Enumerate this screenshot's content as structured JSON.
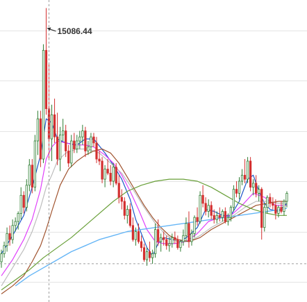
{
  "chart_data": {
    "type": "candlestick",
    "title": "",
    "xlabel": "",
    "ylabel": "",
    "ylim": [
      1500,
      16500
    ],
    "grid": true,
    "grid_lines_y": [
      15000,
      12500,
      10000,
      7500,
      5000,
      2500
    ],
    "crosshair": {
      "index": 17,
      "y": 3400
    },
    "annotations": [
      {
        "text": "15086.44",
        "index": 16,
        "y": 15086.44
      }
    ],
    "colors": {
      "up": "#2e7d32",
      "down": "#d32f2f",
      "grid": "#e4e4e4",
      "crosshair": "#9e9e9e",
      "annotation_arrow": "#333333"
    },
    "candles": [
      [
        3500,
        4100,
        3200,
        3900
      ],
      [
        3900,
        4500,
        3700,
        4300
      ],
      [
        4300,
        5200,
        4000,
        4900
      ],
      [
        4900,
        5300,
        4300,
        4600
      ],
      [
        4600,
        5600,
        4400,
        5300
      ],
      [
        5300,
        5700,
        5000,
        5500
      ],
      [
        5500,
        6000,
        5100,
        5900
      ],
      [
        5900,
        7200,
        5600,
        6800
      ],
      [
        6800,
        7000,
        5900,
        6200
      ],
      [
        6200,
        7600,
        6000,
        7300
      ],
      [
        7300,
        8600,
        7000,
        8300
      ],
      [
        8300,
        8600,
        6900,
        7200
      ],
      [
        7200,
        9800,
        7000,
        9500
      ],
      [
        9500,
        11000,
        8800,
        10600
      ],
      [
        10600,
        11000,
        8200,
        8600
      ],
      [
        8600,
        14300,
        8400,
        14000
      ],
      [
        14000,
        16100,
        10800,
        11100
      ],
      [
        11100,
        13400,
        8600,
        9600
      ],
      [
        9600,
        11300,
        8500,
        10800
      ],
      [
        10800,
        11600,
        9400,
        9700
      ],
      [
        9700,
        10900,
        8300,
        8600
      ],
      [
        8600,
        10200,
        8000,
        9800
      ],
      [
        9800,
        10600,
        9500,
        10000
      ],
      [
        10000,
        10300,
        8700,
        9000
      ],
      [
        9000,
        9300,
        8200,
        8400
      ],
      [
        8400,
        9800,
        8200,
        9500
      ],
      [
        9500,
        9900,
        8900,
        9100
      ],
      [
        9100,
        9800,
        8900,
        9500
      ],
      [
        9500,
        10000,
        9100,
        9700
      ],
      [
        9700,
        10300,
        9300,
        10000
      ],
      [
        10000,
        10200,
        8700,
        9000
      ],
      [
        9000,
        9500,
        8800,
        9200
      ],
      [
        9200,
        9900,
        8900,
        9700
      ],
      [
        9700,
        9900,
        9200,
        9400
      ],
      [
        9400,
        9700,
        8400,
        8600
      ],
      [
        8600,
        9000,
        8300,
        8500
      ],
      [
        8500,
        8700,
        7400,
        7600
      ],
      [
        7600,
        8300,
        7200,
        8100
      ],
      [
        8100,
        8600,
        7800,
        7900
      ],
      [
        7900,
        8300,
        7300,
        7500
      ],
      [
        7500,
        8400,
        7200,
        8200
      ],
      [
        8200,
        8400,
        7300,
        7400
      ],
      [
        7400,
        7800,
        6400,
        6700
      ],
      [
        6700,
        7100,
        6100,
        6500
      ],
      [
        6500,
        6700,
        5600,
        5800
      ],
      [
        5800,
        6300,
        5400,
        6100
      ],
      [
        6100,
        6400,
        5200,
        5300
      ],
      [
        5300,
        5700,
        4500,
        4600
      ],
      [
        4600,
        5200,
        4300,
        5000
      ],
      [
        5000,
        5400,
        4400,
        4500
      ],
      [
        4500,
        4800,
        4000,
        4200
      ],
      [
        4200,
        4400,
        3500,
        3600
      ],
      [
        3600,
        4200,
        3300,
        4000
      ],
      [
        4000,
        4500,
        3500,
        3700
      ],
      [
        3700,
        4100,
        3400,
        3900
      ],
      [
        3900,
        5400,
        3700,
        5100
      ],
      [
        5100,
        5600,
        4300,
        4500
      ],
      [
        4500,
        4900,
        4000,
        4700
      ],
      [
        4700,
        5000,
        4300,
        4600
      ],
      [
        4600,
        4800,
        4100,
        4300
      ],
      [
        4300,
        4700,
        4000,
        4400
      ],
      [
        4400,
        4900,
        4200,
        4700
      ],
      [
        4700,
        5000,
        4400,
        4600
      ],
      [
        4600,
        4800,
        4100,
        4200
      ],
      [
        4200,
        4600,
        4000,
        4500
      ],
      [
        4500,
        5100,
        4300,
        4800
      ],
      [
        4800,
        5700,
        4500,
        5400
      ],
      [
        5400,
        6000,
        4200,
        4500
      ],
      [
        4500,
        5100,
        4300,
        4900
      ],
      [
        4900,
        5800,
        4700,
        5700
      ],
      [
        5700,
        6200,
        5300,
        5500
      ],
      [
        5500,
        7000,
        5400,
        6800
      ],
      [
        6800,
        7300,
        6200,
        6400
      ],
      [
        6400,
        6700,
        5800,
        6000
      ],
      [
        6000,
        6600,
        5700,
        6300
      ],
      [
        6300,
        6500,
        5600,
        5800
      ],
      [
        5800,
        6100,
        5400,
        5600
      ],
      [
        5600,
        6000,
        5400,
        5800
      ],
      [
        5800,
        6200,
        5500,
        5700
      ],
      [
        5700,
        6100,
        5500,
        6000
      ],
      [
        6000,
        6200,
        5400,
        5500
      ],
      [
        5500,
        5900,
        5300,
        5700
      ],
      [
        5700,
        6300,
        5500,
        6200
      ],
      [
        6200,
        7300,
        6000,
        7100
      ],
      [
        7100,
        7500,
        6700,
        6900
      ],
      [
        6900,
        7700,
        6600,
        7500
      ],
      [
        7500,
        8100,
        7300,
        7800
      ],
      [
        7800,
        8600,
        7400,
        7600
      ],
      [
        7600,
        8700,
        7400,
        8500
      ],
      [
        8500,
        8700,
        7000,
        7200
      ],
      [
        7200,
        7600,
        6800,
        7400
      ],
      [
        7400,
        7800,
        6700,
        6900
      ],
      [
        6900,
        7300,
        6500,
        7100
      ],
      [
        7100,
        7200,
        4600,
        5200
      ],
      [
        5200,
        6400,
        5000,
        6200
      ],
      [
        6200,
        6800,
        5900,
        6700
      ],
      [
        6700,
        6900,
        6200,
        6400
      ],
      [
        6400,
        6700,
        6100,
        6300
      ],
      [
        6300,
        6600,
        5600,
        5900
      ],
      [
        5900,
        6300,
        5700,
        6200
      ],
      [
        6200,
        6500,
        5900,
        6000
      ],
      [
        6000,
        6600,
        5800,
        6500
      ],
      [
        6500,
        7000,
        6200,
        6900
      ]
    ],
    "moving_averages": [
      {
        "color": "#1e57c8",
        "width": 1.2,
        "points": [
          [
            0,
            3900
          ],
          [
            4,
            4800
          ],
          [
            8,
            5800
          ],
          [
            11,
            7200
          ],
          [
            14,
            8800
          ],
          [
            16,
            10600
          ],
          [
            18,
            10400
          ],
          [
            20,
            9600
          ],
          [
            23,
            9400
          ],
          [
            27,
            9300
          ],
          [
            30,
            9600
          ],
          [
            33,
            9600
          ],
          [
            37,
            8900
          ],
          [
            40,
            8300
          ],
          [
            43,
            7600
          ],
          [
            46,
            6600
          ],
          [
            48,
            5600
          ],
          [
            50,
            4900
          ],
          [
            52,
            4200
          ],
          [
            54,
            3800
          ],
          [
            56,
            4400
          ],
          [
            58,
            4700
          ],
          [
            61,
            4600
          ],
          [
            64,
            4500
          ],
          [
            67,
            4800
          ],
          [
            70,
            5200
          ],
          [
            73,
            6100
          ],
          [
            76,
            6000
          ],
          [
            79,
            5800
          ],
          [
            82,
            5800
          ],
          [
            85,
            6500
          ],
          [
            88,
            7600
          ],
          [
            90,
            7800
          ],
          [
            92,
            7000
          ],
          [
            94,
            6400
          ],
          [
            96,
            6100
          ],
          [
            99,
            6000
          ],
          [
            102,
            6400
          ]
        ]
      },
      {
        "color": "#e040fb",
        "width": 1.2,
        "points": [
          [
            0,
            2800
          ],
          [
            4,
            3600
          ],
          [
            8,
            4600
          ],
          [
            11,
            5600
          ],
          [
            14,
            7100
          ],
          [
            16,
            8600
          ],
          [
            18,
            9200
          ],
          [
            20,
            9500
          ],
          [
            23,
            9400
          ],
          [
            26,
            9300
          ],
          [
            30,
            9300
          ],
          [
            33,
            9200
          ],
          [
            37,
            8800
          ],
          [
            40,
            8400
          ],
          [
            43,
            7800
          ],
          [
            46,
            7000
          ],
          [
            49,
            6100
          ],
          [
            52,
            5100
          ],
          [
            55,
            4500
          ],
          [
            58,
            4400
          ],
          [
            62,
            4400
          ],
          [
            66,
            4500
          ],
          [
            70,
            4900
          ],
          [
            74,
            5500
          ],
          [
            78,
            5700
          ],
          [
            82,
            5800
          ],
          [
            86,
            6300
          ],
          [
            90,
            6900
          ],
          [
            94,
            6700
          ],
          [
            98,
            6300
          ],
          [
            102,
            6300
          ]
        ]
      },
      {
        "color": "#bdbdbd",
        "width": 1.2,
        "points": [
          [
            0,
            2300
          ],
          [
            4,
            3200
          ],
          [
            8,
            4100
          ],
          [
            11,
            5000
          ],
          [
            14,
            6200
          ],
          [
            16,
            7200
          ],
          [
            18,
            7800
          ],
          [
            20,
            8500
          ],
          [
            23,
            8900
          ],
          [
            27,
            9100
          ],
          [
            31,
            9100
          ],
          [
            35,
            8900
          ],
          [
            39,
            8400
          ],
          [
            43,
            7900
          ],
          [
            47,
            7100
          ],
          [
            51,
            6200
          ],
          [
            55,
            5400
          ],
          [
            59,
            4800
          ],
          [
            63,
            4500
          ],
          [
            67,
            4500
          ],
          [
            71,
            4800
          ],
          [
            75,
            5200
          ],
          [
            79,
            5500
          ],
          [
            83,
            5800
          ],
          [
            87,
            6200
          ],
          [
            91,
            6500
          ],
          [
            95,
            6500
          ],
          [
            99,
            6400
          ],
          [
            102,
            6400
          ]
        ]
      },
      {
        "color": "#a0522d",
        "width": 1.2,
        "points": [
          [
            0,
            1900
          ],
          [
            4,
            2300
          ],
          [
            8,
            2800
          ],
          [
            11,
            3500
          ],
          [
            14,
            4300
          ],
          [
            16,
            5100
          ],
          [
            18,
            6000
          ],
          [
            21,
            7300
          ],
          [
            24,
            8100
          ],
          [
            27,
            8500
          ],
          [
            30,
            8800
          ],
          [
            33,
            9000
          ],
          [
            36,
            9100
          ],
          [
            39,
            8900
          ],
          [
            42,
            8400
          ],
          [
            45,
            7700
          ],
          [
            48,
            7000
          ],
          [
            51,
            6300
          ],
          [
            54,
            5700
          ],
          [
            57,
            5200
          ],
          [
            60,
            4800
          ],
          [
            63,
            4600
          ],
          [
            67,
            4500
          ],
          [
            71,
            4700
          ],
          [
            75,
            5100
          ],
          [
            79,
            5400
          ],
          [
            83,
            5700
          ],
          [
            87,
            6000
          ],
          [
            91,
            6300
          ],
          [
            95,
            6400
          ],
          [
            99,
            6500
          ],
          [
            102,
            6500
          ]
        ]
      },
      {
        "color": "#689f38",
        "width": 1.2,
        "points": [
          [
            0,
            2100
          ],
          [
            5,
            2600
          ],
          [
            10,
            3100
          ],
          [
            15,
            3700
          ],
          [
            20,
            4200
          ],
          [
            25,
            4700
          ],
          [
            30,
            5300
          ],
          [
            35,
            5900
          ],
          [
            40,
            6500
          ],
          [
            45,
            7000
          ],
          [
            50,
            7300
          ],
          [
            55,
            7500
          ],
          [
            60,
            7600
          ],
          [
            65,
            7600
          ],
          [
            70,
            7500
          ],
          [
            75,
            7200
          ],
          [
            80,
            6800
          ],
          [
            85,
            6400
          ],
          [
            90,
            6100
          ],
          [
            95,
            5900
          ],
          [
            99,
            5800
          ],
          [
            102,
            5800
          ]
        ]
      },
      {
        "color": "#64b5f6",
        "width": 1.4,
        "points": [
          [
            5,
            2300
          ],
          [
            10,
            2800
          ],
          [
            15,
            3200
          ],
          [
            20,
            3600
          ],
          [
            25,
            4000
          ],
          [
            30,
            4300
          ],
          [
            35,
            4600
          ],
          [
            40,
            4800
          ],
          [
            45,
            5000
          ],
          [
            50,
            5100
          ],
          [
            55,
            5200
          ],
          [
            60,
            5300
          ],
          [
            65,
            5400
          ],
          [
            70,
            5500
          ],
          [
            75,
            5600
          ],
          [
            80,
            5700
          ],
          [
            85,
            5800
          ],
          [
            90,
            5900
          ],
          [
            95,
            6000
          ],
          [
            100,
            6100
          ],
          [
            102,
            6150
          ]
        ]
      }
    ]
  }
}
